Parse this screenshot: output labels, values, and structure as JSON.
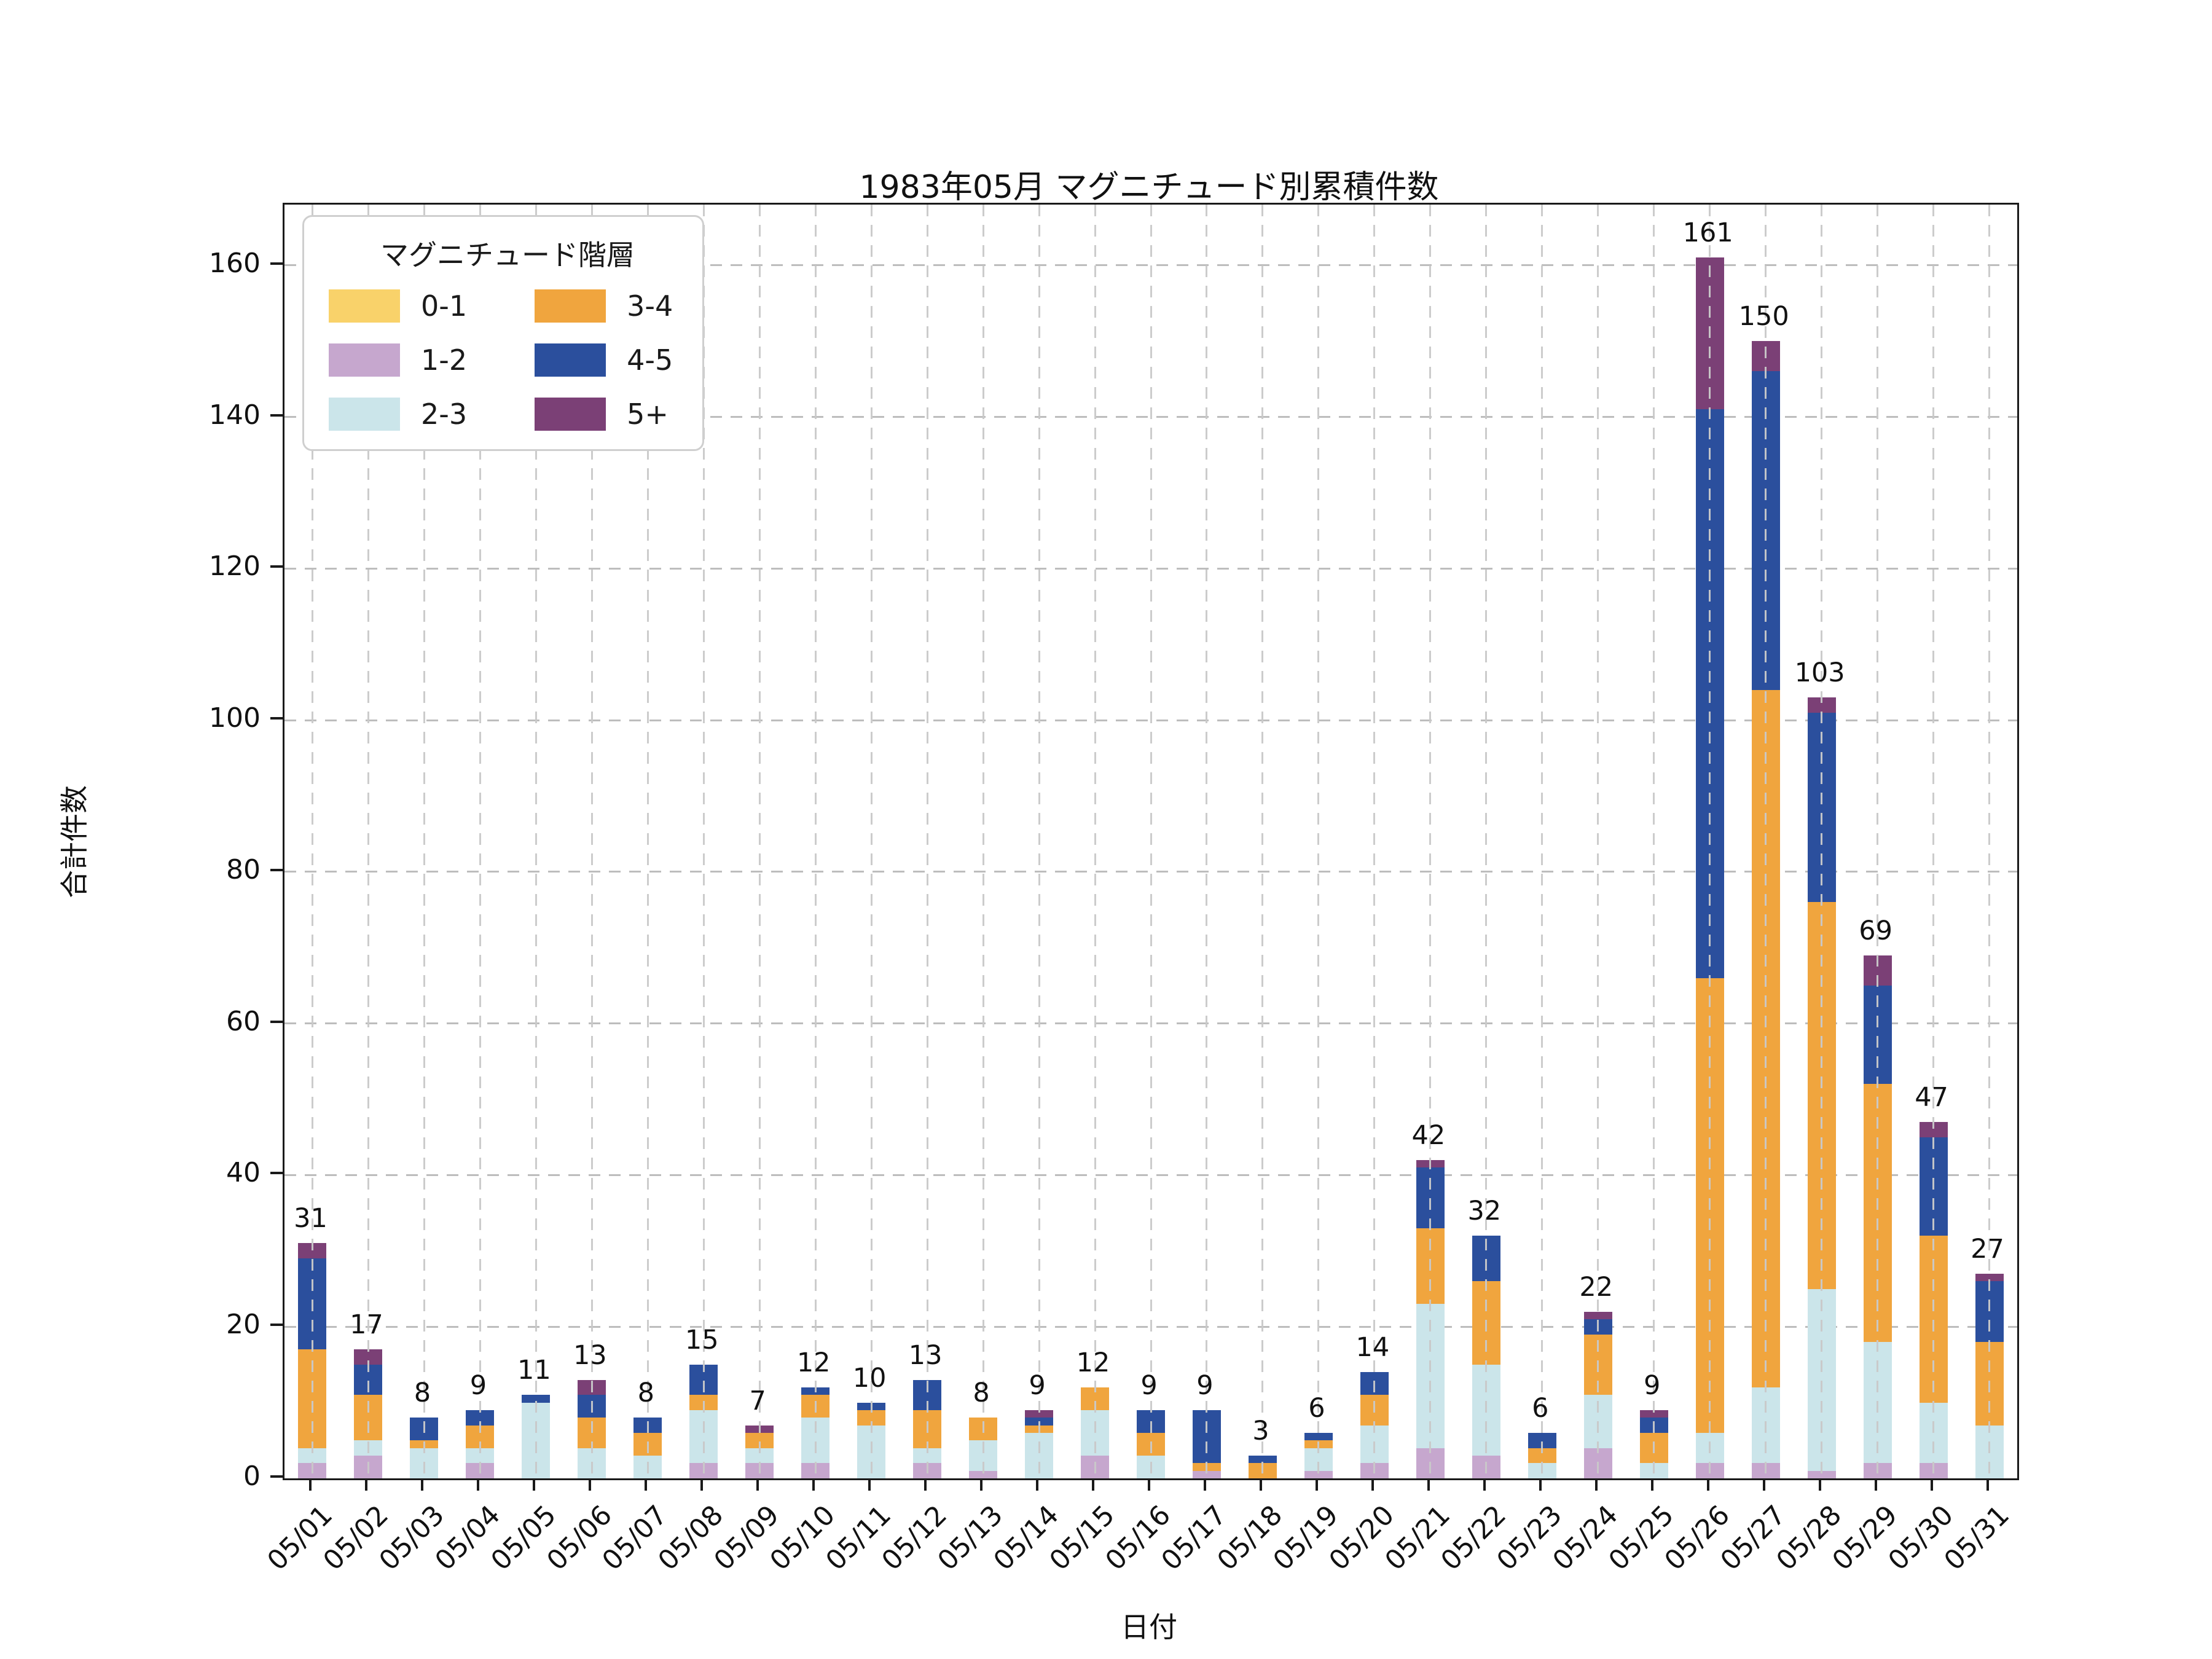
{
  "title": "1983年05月 マグニチュード別累積件数",
  "xlabel": "日付",
  "ylabel": "合計件数",
  "legend": {
    "title": "マグニチュード階層",
    "items": [
      {
        "label": "0-1",
        "color": "#f9d26a"
      },
      {
        "label": "1-2",
        "color": "#c6a7ce"
      },
      {
        "label": "2-3",
        "color": "#cbe5ea"
      },
      {
        "label": "3-4",
        "color": "#f0a53e"
      },
      {
        "label": "4-5",
        "color": "#2b4f9d"
      },
      {
        "label": "5+",
        "color": "#7b4076"
      }
    ]
  },
  "chart_data": {
    "type": "bar",
    "stacked": true,
    "title": "1983年05月 マグニチュード別累積件数",
    "xlabel": "日付",
    "ylabel": "合計件数",
    "ylim": [
      0,
      168
    ],
    "yticks": [
      0,
      20,
      40,
      60,
      80,
      100,
      120,
      140,
      160
    ],
    "grid": "dashed",
    "legend_position": "upper-left",
    "categories": [
      "05/01",
      "05/02",
      "05/03",
      "05/04",
      "05/05",
      "05/06",
      "05/07",
      "05/08",
      "05/09",
      "05/10",
      "05/11",
      "05/12",
      "05/13",
      "05/14",
      "05/15",
      "05/16",
      "05/17",
      "05/18",
      "05/19",
      "05/20",
      "05/21",
      "05/22",
      "05/23",
      "05/24",
      "05/25",
      "05/26",
      "05/27",
      "05/28",
      "05/29",
      "05/30",
      "05/31"
    ],
    "series": [
      {
        "name": "0-1",
        "color": "#f9d26a",
        "values": [
          0,
          0,
          0,
          0,
          0,
          0,
          0,
          0,
          0,
          0,
          0,
          0,
          0,
          0,
          0,
          0,
          0,
          0,
          0,
          0,
          0,
          0,
          0,
          0,
          0,
          0,
          0,
          0,
          0,
          0,
          0
        ]
      },
      {
        "name": "1-2",
        "color": "#c6a7ce",
        "values": [
          2,
          3,
          0,
          2,
          0,
          0,
          0,
          2,
          2,
          2,
          0,
          2,
          1,
          0,
          3,
          0,
          1,
          0,
          1,
          2,
          4,
          3,
          0,
          4,
          0,
          2,
          2,
          1,
          2,
          2,
          0
        ]
      },
      {
        "name": "2-3",
        "color": "#cbe5ea",
        "values": [
          2,
          2,
          4,
          2,
          10,
          4,
          3,
          7,
          2,
          6,
          7,
          2,
          4,
          6,
          6,
          3,
          0,
          0,
          3,
          5,
          19,
          12,
          2,
          7,
          2,
          4,
          10,
          24,
          16,
          8,
          7
        ]
      },
      {
        "name": "3-4",
        "color": "#f0a53e",
        "values": [
          13,
          6,
          1,
          3,
          0,
          4,
          3,
          2,
          2,
          3,
          2,
          5,
          3,
          1,
          3,
          3,
          1,
          2,
          1,
          4,
          10,
          11,
          2,
          8,
          4,
          60,
          92,
          51,
          34,
          22,
          11
        ]
      },
      {
        "name": "4-5",
        "color": "#2b4f9d",
        "values": [
          12,
          4,
          3,
          2,
          1,
          3,
          2,
          4,
          0,
          1,
          1,
          4,
          0,
          1,
          0,
          3,
          7,
          1,
          1,
          3,
          8,
          6,
          2,
          2,
          2,
          75,
          42,
          25,
          13,
          13,
          8
        ]
      },
      {
        "name": "5+",
        "color": "#7b4076",
        "values": [
          2,
          2,
          0,
          0,
          0,
          2,
          0,
          0,
          1,
          0,
          0,
          0,
          0,
          1,
          0,
          0,
          0,
          0,
          0,
          0,
          1,
          0,
          0,
          1,
          1,
          20,
          4,
          2,
          4,
          2,
          1
        ]
      }
    ],
    "totals": [
      31,
      17,
      8,
      9,
      11,
      13,
      8,
      15,
      7,
      12,
      10,
      13,
      8,
      9,
      12,
      9,
      9,
      3,
      6,
      14,
      42,
      32,
      6,
      22,
      9,
      161,
      150,
      103,
      69,
      47,
      27
    ]
  }
}
